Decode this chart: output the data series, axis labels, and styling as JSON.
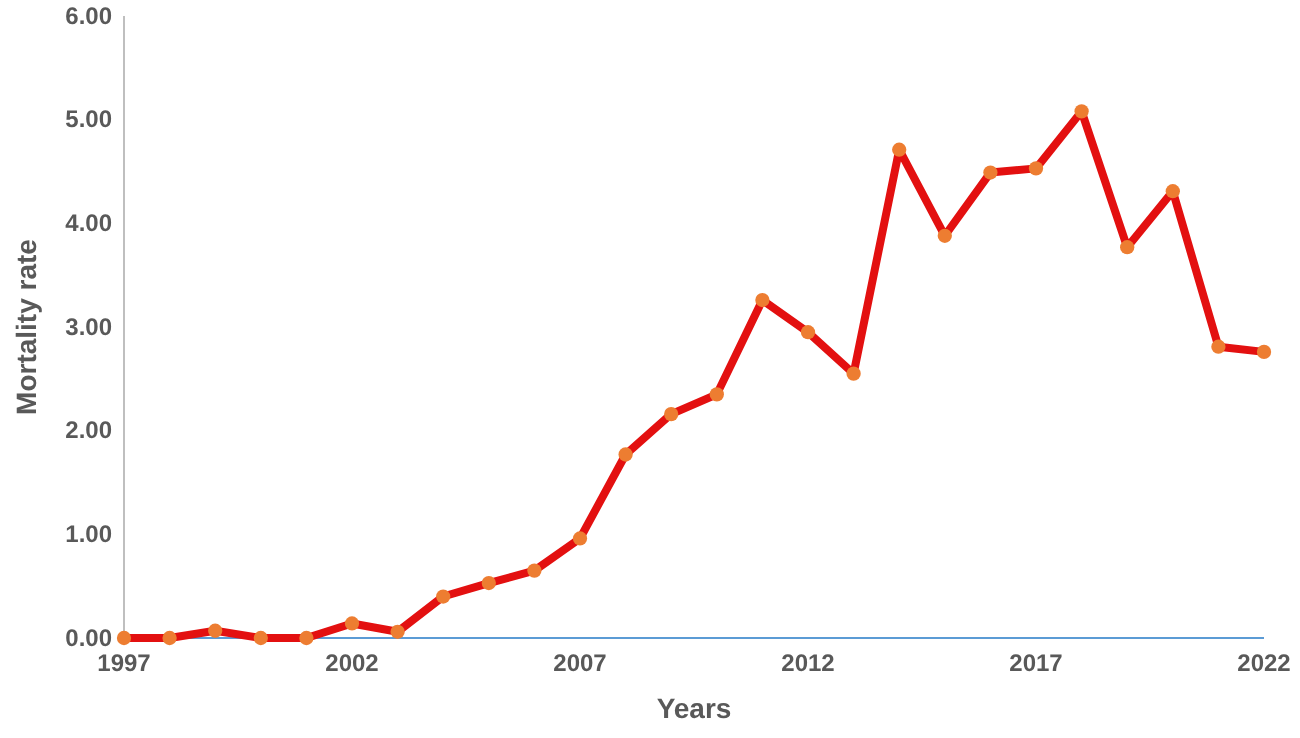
{
  "chart_data": {
    "type": "line",
    "xlabel": "Years",
    "ylabel": "Mortality rate",
    "x": [
      1997,
      1998,
      1999,
      2000,
      2001,
      2002,
      2003,
      2004,
      2005,
      2006,
      2007,
      2008,
      2009,
      2010,
      2011,
      2012,
      2013,
      2014,
      2015,
      2016,
      2017,
      2018,
      2019,
      2020,
      2021,
      2022
    ],
    "series": [
      {
        "color": "#e31010",
        "values": [
          0.0,
          0.0,
          0.07,
          0.0,
          0.0,
          0.14,
          0.06,
          0.4,
          0.53,
          0.65,
          0.96,
          1.77,
          2.16,
          2.35,
          3.26,
          2.95,
          2.55,
          4.71,
          3.88,
          4.49,
          4.53,
          5.08,
          3.77,
          4.31,
          2.81,
          2.76
        ]
      }
    ],
    "xlim": [
      1997,
      2022
    ],
    "xticks": [
      1997,
      2002,
      2007,
      2012,
      2017,
      2022
    ],
    "ylim": [
      0,
      6
    ],
    "yticks": [
      {
        "value": 0,
        "label": "0.00"
      },
      {
        "value": 1,
        "label": "1.00"
      },
      {
        "value": 2,
        "label": "2.00"
      },
      {
        "value": 3,
        "label": "3.00"
      },
      {
        "value": 4,
        "label": "4.00"
      },
      {
        "value": 5,
        "label": "5.00"
      },
      {
        "value": 6,
        "label": "6.00"
      }
    ],
    "grid": false,
    "marker": "circle",
    "line_style": "solid"
  }
}
